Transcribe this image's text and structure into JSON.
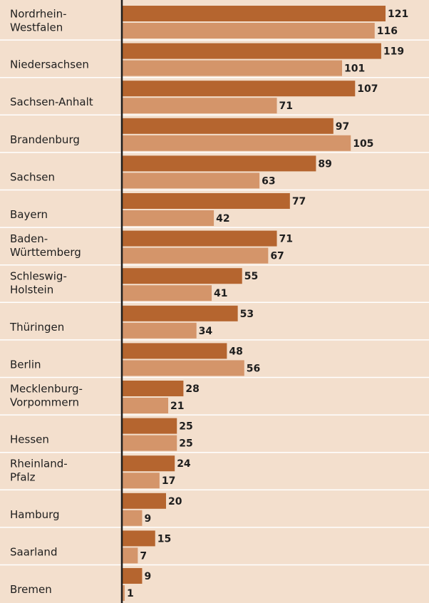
{
  "chart_data": {
    "type": "bar",
    "orientation": "horizontal",
    "categories": [
      "Nordrhein-\nWestfalen",
      "Niedersachsen",
      "Sachsen-Anhalt",
      "Brandenburg",
      "Sachsen",
      "Bayern",
      "Baden-\nWürttemberg",
      "Schleswig-\nHolstein",
      "Thüringen",
      "Berlin",
      "Mecklenburg-\nVorpommern",
      "Hessen",
      "Rheinland-\nPfalz",
      "Hamburg",
      "Saarland",
      "Bremen"
    ],
    "series": [
      {
        "color": "#b5652f",
        "values": [
          121,
          119,
          107,
          97,
          89,
          77,
          71,
          55,
          53,
          48,
          28,
          25,
          24,
          20,
          15,
          9
        ]
      },
      {
        "color": "#d4956a",
        "values": [
          116,
          101,
          71,
          105,
          63,
          42,
          67,
          41,
          34,
          56,
          21,
          25,
          17,
          9,
          7,
          1
        ]
      }
    ]
  }
}
